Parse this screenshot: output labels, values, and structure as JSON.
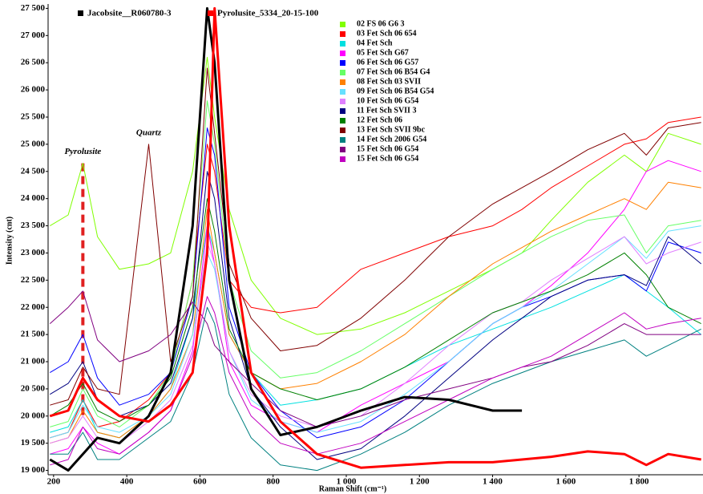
{
  "chart_data": {
    "type": "line",
    "y_label": "Intensity (cnt)",
    "x_label": "Raman Shift (cm⁻¹)",
    "annotations": [
      {
        "text": "Pyrolusite",
        "x": 280,
        "y": 24650
      },
      {
        "text": "Quartz",
        "x": 460,
        "y": 25000
      }
    ],
    "xlim": [
      185,
      1975
    ],
    "ylim": [
      18920,
      27580
    ],
    "xticks": [
      200,
      400,
      600,
      800,
      {
        "value": 1000,
        "label": "1 000"
      },
      {
        "value": 1200,
        "label": "1 200"
      },
      {
        "value": 1400,
        "label": "1 400"
      },
      {
        "value": 1600,
        "label": "1 600"
      },
      {
        "value": 1800,
        "label": "1 800"
      }
    ],
    "yticks": [
      {
        "value": 19000,
        "label": "19 000"
      },
      {
        "value": 19500,
        "label": "19 500"
      },
      {
        "value": 20000,
        "label": "20 000"
      },
      {
        "value": 20500,
        "label": "20 500"
      },
      {
        "value": 21000,
        "label": "21 000"
      },
      {
        "value": 21500,
        "label": "21 500"
      },
      {
        "value": 22000,
        "label": "22 000"
      },
      {
        "value": 22500,
        "label": "22 500"
      },
      {
        "value": 23000,
        "label": "23 000"
      },
      {
        "value": 23500,
        "label": "23 500"
      },
      {
        "value": 24000,
        "label": "24 000"
      },
      {
        "value": 24500,
        "label": "24 500"
      },
      {
        "value": 25000,
        "label": "25 000"
      },
      {
        "value": 25500,
        "label": "25 500"
      },
      {
        "value": 26000,
        "label": "26 000"
      },
      {
        "value": 26500,
        "label": "26 500"
      },
      {
        "value": 27000,
        "label": "27 000"
      },
      {
        "value": 27500,
        "label": "27 500"
      }
    ],
    "grid": false,
    "x": [
      190,
      240,
      280,
      320,
      380,
      460,
      520,
      580,
      620,
      640,
      680,
      740,
      820,
      920,
      1040,
      1160,
      1280,
      1400,
      1480,
      1560,
      1660,
      1760,
      1820,
      1880,
      1970
    ],
    "series": [
      {
        "name": "Jacobsite__R060780-3",
        "color": "#000000",
        "width": 3,
        "values": [
          19200,
          19000,
          19300,
          19600,
          19500,
          20000,
          20800,
          23500,
          27500,
          26500,
          22500,
          20500,
          19650,
          19800,
          20100,
          20350,
          20300,
          20100,
          20100,
          null,
          null,
          null,
          null,
          null,
          null
        ]
      },
      {
        "name": "Pyrolusite_5334_20-15-100",
        "color": "#ff0000",
        "width": 3,
        "values": [
          20000,
          20100,
          20700,
          20300,
          20000,
          19900,
          20200,
          20800,
          23000,
          27500,
          23500,
          20800,
          19900,
          19300,
          19050,
          19100,
          19150,
          19150,
          19200,
          19250,
          19350,
          19300,
          19100,
          19300,
          19200
        ]
      },
      {
        "name": "02  FS 06 G6 3",
        "color": "#80ff00",
        "width": 1,
        "values": [
          23500,
          23700,
          24650,
          23300,
          22700,
          22800,
          23000,
          24500,
          26600,
          25500,
          23800,
          22500,
          21800,
          21500,
          21600,
          21900,
          22300,
          22700,
          23000,
          23600,
          24300,
          24800,
          24500,
          25200,
          25000
        ]
      },
      {
        "name": "03 Fet Sch 06 654",
        "color": "#ff0000",
        "width": 1,
        "values": [
          19600,
          19700,
          20300,
          19800,
          19900,
          20300,
          20800,
          22500,
          25000,
          24500,
          22500,
          22000,
          21900,
          22000,
          22700,
          23000,
          23300,
          23500,
          23800,
          24200,
          24600,
          25000,
          25100,
          25400,
          25500
        ]
      },
      {
        "name": "04 Fet Sch",
        "color": "#00e0e0",
        "width": 1,
        "values": [
          19700,
          19800,
          20300,
          19700,
          19600,
          20000,
          20500,
          21800,
          23500,
          23000,
          21500,
          20800,
          20200,
          20300,
          20500,
          20900,
          21300,
          21600,
          21800,
          22000,
          22300,
          22600,
          22300,
          22000,
          21500
        ]
      },
      {
        "name": "05 Fet Sch G67",
        "color": "#ff00ff",
        "width": 1,
        "values": [
          19300,
          19400,
          19800,
          19500,
          19300,
          19700,
          20100,
          21200,
          23500,
          22800,
          21000,
          20200,
          19900,
          19700,
          20200,
          20600,
          21000,
          21700,
          22000,
          22400,
          23000,
          23800,
          24500,
          24700,
          24500
        ]
      },
      {
        "name": "06 Fet Sch 06 G57",
        "color": "#0000ff",
        "width": 1,
        "values": [
          20800,
          21000,
          21500,
          20700,
          20200,
          20400,
          20800,
          22200,
          25300,
          24800,
          22000,
          20800,
          20100,
          19600,
          19800,
          20300,
          21000,
          21700,
          22000,
          22200,
          22500,
          22600,
          22300,
          23200,
          23000
        ]
      },
      {
        "name": "07 Fet Sch 06 B54  G4",
        "color": "#66ff66",
        "width": 1,
        "values": [
          19800,
          19900,
          20500,
          20000,
          19800,
          20200,
          20800,
          22500,
          25800,
          25000,
          22500,
          21200,
          20700,
          20800,
          21200,
          21700,
          22200,
          22700,
          23000,
          23300,
          23600,
          23700,
          23000,
          23500,
          23600
        ]
      },
      {
        "name": "08 Fet Sch 03 SVII",
        "color": "#ff8000",
        "width": 1,
        "values": [
          19500,
          19600,
          20100,
          19700,
          19600,
          20000,
          20500,
          21500,
          23800,
          23000,
          21500,
          20800,
          20500,
          20600,
          21000,
          21500,
          22200,
          22800,
          23100,
          23400,
          23700,
          24000,
          23800,
          24300,
          24200
        ]
      },
      {
        "name": "09 Fet Sch 06 B54  G54",
        "color": "#66e0ff",
        "width": 1,
        "values": [
          19600,
          19700,
          20200,
          19800,
          19700,
          20000,
          20400,
          21500,
          23000,
          22700,
          21200,
          20300,
          19900,
          19700,
          19900,
          20400,
          21000,
          21700,
          22000,
          22300,
          22800,
          23300,
          22900,
          23400,
          23500
        ]
      },
      {
        "name": "10 Fet Sch 06 G54",
        "color": "#e080ff",
        "width": 1,
        "values": [
          19500,
          19600,
          20000,
          19600,
          19500,
          19900,
          20300,
          21300,
          23200,
          22800,
          21200,
          20400,
          20000,
          19800,
          20000,
          20600,
          21300,
          21900,
          22100,
          22500,
          22900,
          23300,
          22800,
          23000,
          23200
        ]
      },
      {
        "name": "11 Fet Sch SVII 3",
        "color": "#000080",
        "width": 1,
        "values": [
          20400,
          20600,
          21000,
          20300,
          20000,
          20200,
          20600,
          21800,
          24500,
          24000,
          21800,
          20500,
          19800,
          19200,
          19400,
          20000,
          20700,
          21400,
          21800,
          22200,
          22500,
          22600,
          22400,
          23300,
          22800
        ]
      },
      {
        "name": "12 Fet Sch 06",
        "color": "#008000",
        "width": 1,
        "values": [
          20000,
          20200,
          20600,
          20100,
          19900,
          20200,
          20700,
          22000,
          24000,
          23400,
          21600,
          20800,
          20500,
          20300,
          20500,
          20900,
          21400,
          21900,
          22100,
          22300,
          22600,
          23000,
          22600,
          22000,
          21700
        ]
      },
      {
        "name": "13 Fet Sch SVII 9bc",
        "color": "#800000",
        "width": 1,
        "values": [
          20200,
          20300,
          20900,
          20500,
          20400,
          25000,
          21000,
          22200,
          26400,
          25200,
          22800,
          21800,
          21200,
          21300,
          21800,
          22500,
          23300,
          23900,
          24200,
          24500,
          24900,
          25200,
          24800,
          25300,
          25400
        ]
      },
      {
        "name": "14 Fet Sch 2006 G54",
        "color": "#008080",
        "width": 1,
        "values": [
          19300,
          19300,
          19700,
          19200,
          19200,
          19600,
          19900,
          20800,
          22000,
          21700,
          20400,
          19600,
          19100,
          19000,
          19300,
          19700,
          20200,
          20600,
          20800,
          21000,
          21200,
          21400,
          21100,
          21300,
          21600
        ]
      },
      {
        "name": "15 Fet Sch 06 G54",
        "color": "#800080",
        "width": 1,
        "values": [
          21700,
          22000,
          22300,
          21400,
          21000,
          21200,
          21500,
          22100,
          21700,
          21300,
          21000,
          20600,
          20100,
          19800,
          20000,
          20300,
          20500,
          20700,
          20900,
          21000,
          21300,
          21700,
          21500,
          21500,
          21500
        ]
      },
      {
        "name": "15 Fet Sch 06 G54",
        "color": "#c000c0",
        "width": 1,
        "values": [
          19100,
          19200,
          19800,
          19400,
          19300,
          19700,
          20100,
          21100,
          22200,
          21900,
          20800,
          20000,
          19500,
          19300,
          19500,
          19900,
          20300,
          20700,
          20900,
          21100,
          21500,
          21900,
          21600,
          21700,
          21800
        ]
      }
    ]
  }
}
